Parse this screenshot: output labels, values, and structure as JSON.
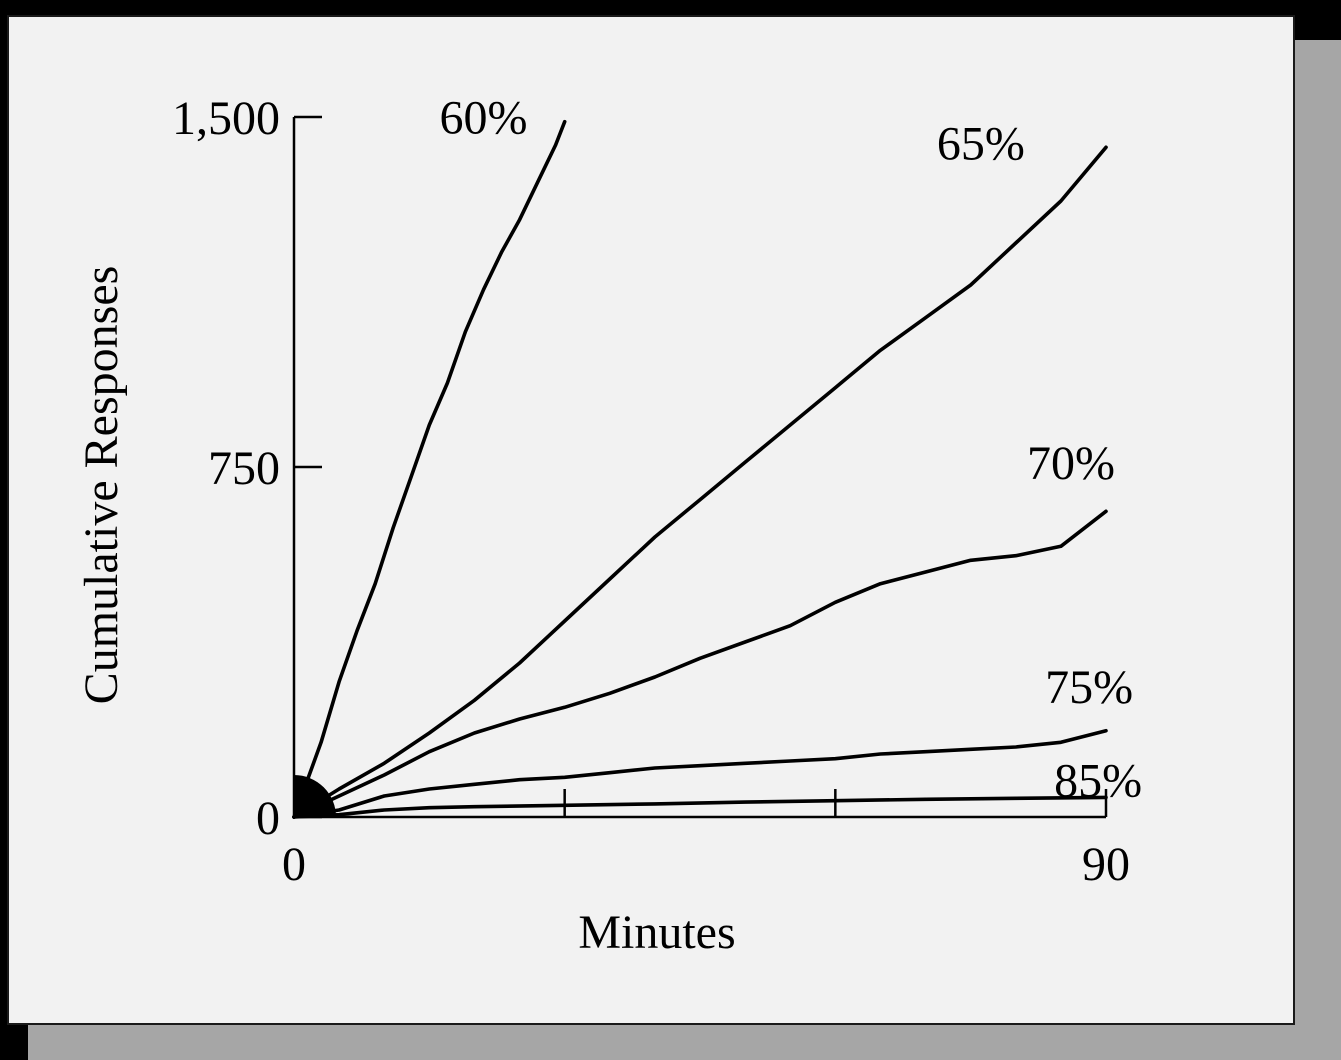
{
  "chart_data": {
    "type": "line",
    "title": "",
    "xlabel": "Minutes",
    "ylabel": "Cumulative Responses",
    "xlim": [
      0,
      90
    ],
    "ylim": [
      0,
      1500
    ],
    "x_ticks": [
      {
        "value": 0,
        "label": "0"
      },
      {
        "value": 30,
        "label": ""
      },
      {
        "value": 60,
        "label": ""
      },
      {
        "value": 90,
        "label": "90"
      }
    ],
    "y_ticks": [
      {
        "value": 0,
        "label": "0"
      },
      {
        "value": 750,
        "label": "750"
      },
      {
        "value": 1500,
        "label": "1,500"
      }
    ],
    "grid": false,
    "legend": "none",
    "series": [
      {
        "name": "60%",
        "x": [
          0,
          3,
          5,
          7,
          9,
          11,
          13,
          15,
          17,
          19,
          21,
          23,
          25,
          27,
          29,
          30
        ],
        "y": [
          0,
          160,
          290,
          400,
          500,
          620,
          730,
          840,
          930,
          1040,
          1130,
          1210,
          1280,
          1360,
          1440,
          1490
        ]
      },
      {
        "name": "65%",
        "x": [
          0,
          5,
          10,
          15,
          20,
          25,
          30,
          35,
          40,
          45,
          50,
          55,
          60,
          65,
          70,
          75,
          80,
          85,
          90
        ],
        "y": [
          0,
          60,
          115,
          180,
          250,
          330,
          420,
          510,
          600,
          680,
          760,
          840,
          920,
          1000,
          1070,
          1140,
          1230,
          1320,
          1435
        ]
      },
      {
        "name": "70%",
        "x": [
          0,
          5,
          10,
          15,
          20,
          25,
          30,
          35,
          40,
          45,
          50,
          55,
          60,
          65,
          70,
          75,
          80,
          85,
          90
        ],
        "y": [
          0,
          45,
          90,
          140,
          180,
          210,
          235,
          265,
          300,
          340,
          375,
          410,
          460,
          500,
          525,
          550,
          560,
          580,
          655
        ]
      },
      {
        "name": "75%",
        "x": [
          0,
          5,
          10,
          15,
          20,
          25,
          30,
          35,
          40,
          45,
          50,
          55,
          60,
          65,
          70,
          75,
          80,
          85,
          90
        ],
        "y": [
          0,
          15,
          45,
          60,
          70,
          80,
          85,
          95,
          105,
          110,
          115,
          120,
          125,
          135,
          140,
          145,
          150,
          160,
          185
        ]
      },
      {
        "name": "85%",
        "x": [
          0,
          5,
          10,
          15,
          20,
          30,
          40,
          50,
          60,
          70,
          80,
          90
        ],
        "y": [
          0,
          5,
          15,
          20,
          22,
          25,
          28,
          32,
          35,
          38,
          40,
          42
        ]
      }
    ],
    "label_anchor_x": [
      21,
      81,
      91,
      93,
      94
    ],
    "label_anchor_y": [
      1490,
      1435,
      750,
      270,
      70
    ]
  }
}
